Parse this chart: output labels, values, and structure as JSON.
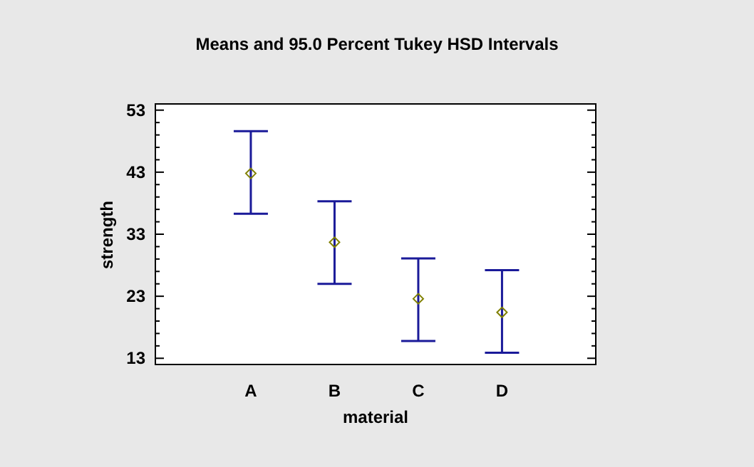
{
  "chart_data": {
    "type": "scatter",
    "title": "Means and 95.0 Percent Tukey HSD Intervals",
    "xlabel": "material",
    "ylabel": "strength",
    "categories": [
      "A",
      "B",
      "C",
      "D"
    ],
    "series": [
      {
        "color": "#808000",
        "values": [
          42.8,
          31.7,
          22.6,
          20.4
        ],
        "errors": [
          [
            36.3,
            49.6
          ],
          [
            25.0,
            38.3
          ],
          [
            15.8,
            29.1
          ],
          [
            13.9,
            27.2
          ]
        ]
      }
    ],
    "ylim": [
      12,
      54
    ],
    "yticks": [
      {
        "value": 12,
        "label": null
      },
      {
        "value": 13,
        "label": "13"
      },
      {
        "value": 15,
        "label": null
      },
      {
        "value": 17,
        "label": null
      },
      {
        "value": 19,
        "label": null
      },
      {
        "value": 21,
        "label": null
      },
      {
        "value": 23,
        "label": "23"
      },
      {
        "value": 25,
        "label": null
      },
      {
        "value": 27,
        "label": null
      },
      {
        "value": 29,
        "label": null
      },
      {
        "value": 31,
        "label": null
      },
      {
        "value": 33,
        "label": "33"
      },
      {
        "value": 35,
        "label": null
      },
      {
        "value": 37,
        "label": null
      },
      {
        "value": 39,
        "label": null
      },
      {
        "value": 41,
        "label": null
      },
      {
        "value": 43,
        "label": "43"
      },
      {
        "value": 45,
        "label": null
      },
      {
        "value": 47,
        "label": null
      },
      {
        "value": 49,
        "label": null
      },
      {
        "value": 51,
        "label": null
      },
      {
        "value": 53,
        "label": "53"
      }
    ],
    "marker": "diamond"
  }
}
